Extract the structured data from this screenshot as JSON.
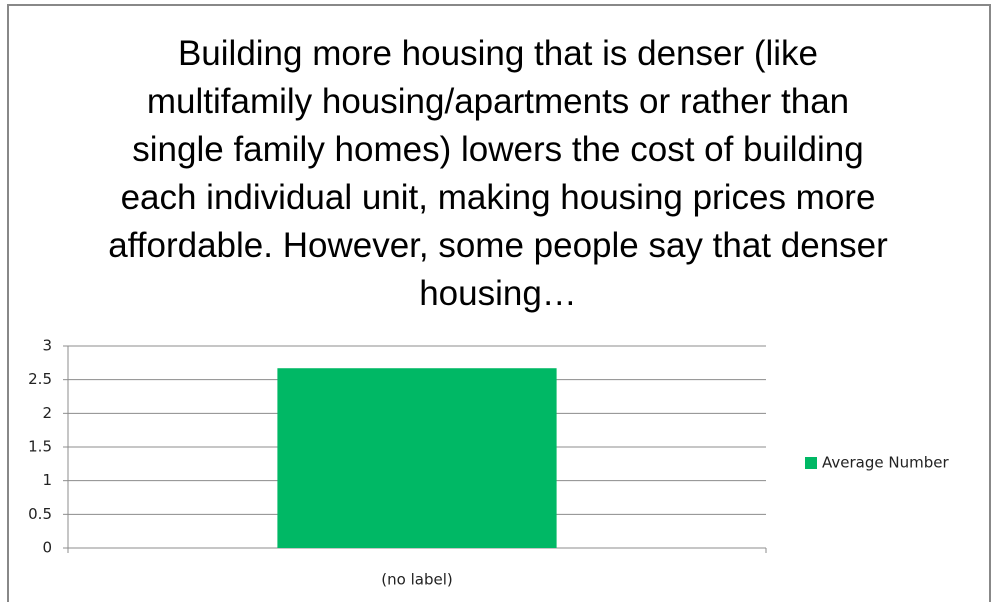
{
  "chart_data": {
    "type": "bar",
    "title": "Building more housing that is denser (like multifamily housing/apartments or rather than single family homes) lowers the cost of building each individual unit, making housing prices more affordable. However, some people say that denser housing…",
    "categories": [
      "(no label)"
    ],
    "series": [
      {
        "name": "Average Number",
        "color": "#00b865",
        "values": [
          2.67
        ]
      }
    ],
    "ylim": [
      0,
      3
    ],
    "yticks": [
      0,
      0.5,
      1,
      1.5,
      2,
      2.5,
      3
    ],
    "grid": true,
    "legend": "right"
  }
}
